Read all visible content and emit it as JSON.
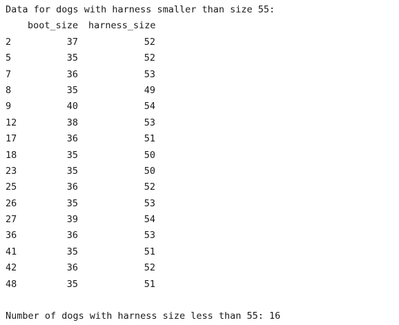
{
  "output": {
    "heading": "Data for dogs with harness smaller than size 55:",
    "columns": [
      "boot_size",
      "harness_size"
    ],
    "rows": [
      {
        "index": "2",
        "boot_size": "37",
        "harness_size": "52"
      },
      {
        "index": "5",
        "boot_size": "35",
        "harness_size": "52"
      },
      {
        "index": "7",
        "boot_size": "36",
        "harness_size": "53"
      },
      {
        "index": "8",
        "boot_size": "35",
        "harness_size": "49"
      },
      {
        "index": "9",
        "boot_size": "40",
        "harness_size": "54"
      },
      {
        "index": "12",
        "boot_size": "38",
        "harness_size": "53"
      },
      {
        "index": "17",
        "boot_size": "36",
        "harness_size": "51"
      },
      {
        "index": "18",
        "boot_size": "35",
        "harness_size": "50"
      },
      {
        "index": "23",
        "boot_size": "35",
        "harness_size": "50"
      },
      {
        "index": "25",
        "boot_size": "36",
        "harness_size": "52"
      },
      {
        "index": "26",
        "boot_size": "35",
        "harness_size": "53"
      },
      {
        "index": "27",
        "boot_size": "39",
        "harness_size": "54"
      },
      {
        "index": "36",
        "boot_size": "36",
        "harness_size": "53"
      },
      {
        "index": "41",
        "boot_size": "35",
        "harness_size": "51"
      },
      {
        "index": "42",
        "boot_size": "36",
        "harness_size": "52"
      },
      {
        "index": "48",
        "boot_size": "35",
        "harness_size": "51"
      }
    ],
    "summary": "Number of dogs with harness size less than 55: 16"
  }
}
